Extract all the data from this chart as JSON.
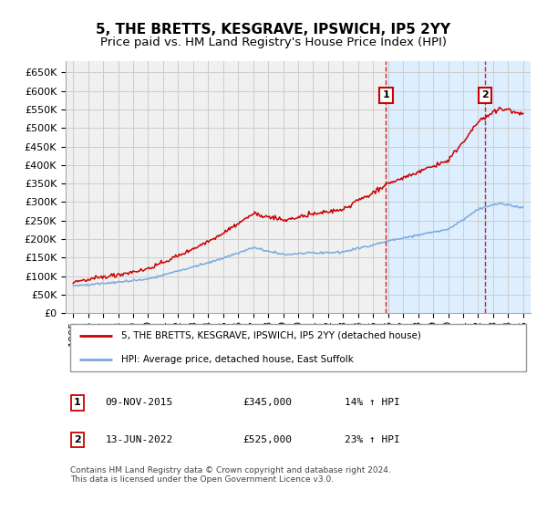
{
  "title": "5, THE BRETTS, KESGRAVE, IPSWICH, IP5 2YY",
  "subtitle": "Price paid vs. HM Land Registry's House Price Index (HPI)",
  "ylim": [
    0,
    680000
  ],
  "yticks": [
    0,
    50000,
    100000,
    150000,
    200000,
    250000,
    300000,
    350000,
    400000,
    450000,
    500000,
    550000,
    600000,
    650000
  ],
  "ytick_labels": [
    "£0",
    "£50K",
    "£100K",
    "£150K",
    "£200K",
    "£250K",
    "£300K",
    "£350K",
    "£400K",
    "£450K",
    "£500K",
    "£550K",
    "£600K",
    "£650K"
  ],
  "xlim_start": 1994.5,
  "xlim_end": 2025.5,
  "xtick_years": [
    1995,
    1996,
    1997,
    1998,
    1999,
    2000,
    2001,
    2002,
    2003,
    2004,
    2005,
    2006,
    2007,
    2008,
    2009,
    2010,
    2011,
    2012,
    2013,
    2014,
    2015,
    2016,
    2017,
    2018,
    2019,
    2020,
    2021,
    2022,
    2023,
    2024,
    2025
  ],
  "hpi_color": "#7aaadd",
  "price_color": "#cc0000",
  "vline_color": "#cc0000",
  "shade_color": "#ddeeff",
  "marker1_year": 2015.86,
  "marker2_year": 2022.45,
  "marker1_price": 345000,
  "marker2_price": 525000,
  "annotation1": [
    "1",
    "09-NOV-2015",
    "£345,000",
    "14% ↑ HPI"
  ],
  "annotation2": [
    "2",
    "13-JUN-2022",
    "£525,000",
    "23% ↑ HPI"
  ],
  "legend_line1": "5, THE BRETTS, KESGRAVE, IPSWICH, IP5 2YY (detached house)",
  "legend_line2": "HPI: Average price, detached house, East Suffolk",
  "footer": "Contains HM Land Registry data © Crown copyright and database right 2024.\nThis data is licensed under the Open Government Licence v3.0.",
  "bg_color": "#ffffff",
  "plot_bg_color": "#f0f0f0",
  "grid_color": "#cccccc",
  "title_fontsize": 11,
  "tick_fontsize": 8
}
